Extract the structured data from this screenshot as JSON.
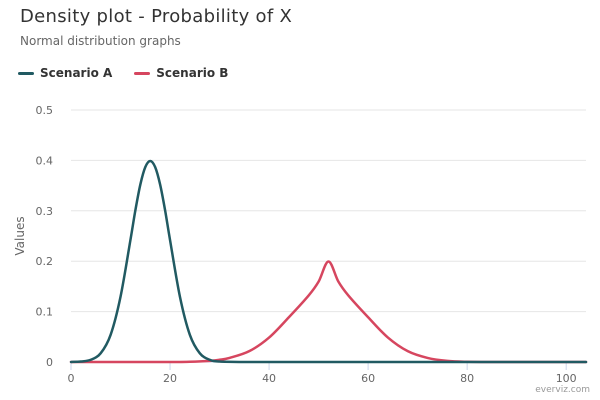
{
  "credits": "everviz.com",
  "chart_data": {
    "type": "line",
    "title": "Density plot - Probability of X",
    "subtitle": "Normal distribution graphs",
    "xlabel": "",
    "ylabel": "Values",
    "xlim": [
      0,
      104
    ],
    "ylim": [
      0,
      0.5
    ],
    "x_ticks": [
      0,
      20,
      40,
      60,
      80,
      100
    ],
    "y_ticks": [
      0,
      0.1,
      0.2,
      0.3,
      0.4,
      0.5
    ],
    "y_tick_labels": [
      "0",
      "0.1",
      "0.2",
      "0.3",
      "0.4",
      "0.5"
    ],
    "grid": true,
    "legend_position": "top-left",
    "series": [
      {
        "name": "Scenario A",
        "color": "#215a62",
        "x": [
          0,
          2,
          4,
          6,
          8,
          10,
          12,
          13,
          14,
          15,
          16,
          17,
          18,
          19,
          20,
          22,
          24,
          26,
          28,
          30,
          35,
          40,
          50,
          60,
          70,
          80,
          90,
          100,
          104
        ],
        "y": [
          0.0001,
          0.0009,
          0.0044,
          0.0175,
          0.054,
          0.1295,
          0.242,
          0.3011,
          0.3521,
          0.3867,
          0.3989,
          0.3867,
          0.3521,
          0.3011,
          0.242,
          0.1295,
          0.054,
          0.0175,
          0.0044,
          0.0009,
          0,
          0,
          0,
          0,
          0,
          0,
          0,
          0,
          0
        ]
      },
      {
        "name": "Scenario B",
        "color": "#d6465f",
        "x": [
          0,
          20,
          24,
          28,
          30,
          32,
          36,
          40,
          44,
          48,
          50,
          52,
          54,
          56,
          60,
          64,
          68,
          72,
          76,
          80,
          84,
          90,
          100,
          104
        ],
        "y": [
          0,
          0,
          0.0004,
          0.0022,
          0.0044,
          0.0081,
          0.0215,
          0.0485,
          0.0888,
          0.1321,
          0.1595,
          0.1995,
          0.1595,
          0.1321,
          0.0888,
          0.0485,
          0.0215,
          0.0081,
          0.0022,
          0.0004,
          0.0001,
          0,
          0,
          0
        ]
      }
    ]
  }
}
